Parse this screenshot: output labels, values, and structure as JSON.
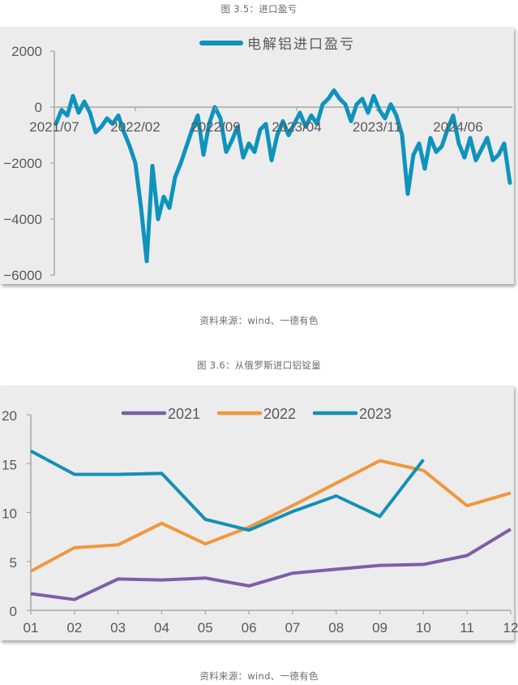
{
  "figure1": {
    "caption": "图 3.5：进口盈亏",
    "source": "资料来源：wind、一德有色"
  },
  "figure2": {
    "caption": "图 3.6：从俄罗斯进口铝锭量",
    "source": "资料来源：wind、一德有色"
  },
  "colors": {
    "series_import": "#0e93bd",
    "y2021": "#7f5ea8",
    "y2022": "#f0973e",
    "y2023": "#1390b4",
    "panel_bg": "#ececec",
    "axis": "#a6a6a6",
    "text": "#595959"
  },
  "chart_data": [
    {
      "type": "line",
      "title": "",
      "legend": [
        "电解铝进口盈亏"
      ],
      "legend_position": "top",
      "xlabel": "",
      "ylabel": "",
      "ylim": [
        -6000,
        2000
      ],
      "yticks": [
        "2000",
        "0",
        "-2000",
        "-4000",
        "-6000"
      ],
      "xticks": [
        "2021/07",
        "2022/02",
        "2022/09",
        "2023/04",
        "2023/11",
        "2024/06"
      ],
      "grid": false,
      "series": [
        {
          "name": "电解铝进口盈亏",
          "x_index_range": [
            0,
            40
          ],
          "values": [
            -600,
            -100,
            -300,
            400,
            -200,
            200,
            -200,
            -900,
            -700,
            -400,
            -600,
            -300,
            -900,
            -1400,
            -2000,
            -3600,
            -5500,
            -2100,
            -4000,
            -3200,
            -3600,
            -2500,
            -2000,
            -1400,
            -800,
            -300,
            -1700,
            -600,
            0,
            -400,
            -1600,
            -1200,
            -700,
            -1800,
            -1300,
            -1600,
            -800,
            -600,
            -1900,
            -1000,
            -500,
            -1000,
            -600,
            -200,
            -700,
            -300,
            -600,
            100,
            300,
            600,
            300,
            100,
            -500,
            100,
            300,
            -200,
            400,
            -100,
            -400,
            100,
            -300,
            -1000,
            -3100,
            -1700,
            -1300,
            -2200,
            -1100,
            -1600,
            -1400,
            -800,
            -300,
            -1300,
            -1800,
            -1100,
            -1900,
            -1500,
            -1100,
            -1900,
            -1700,
            -1300,
            -2700
          ]
        }
      ]
    },
    {
      "type": "line",
      "title": "",
      "legend": [
        "2021",
        "2022",
        "2023"
      ],
      "legend_position": "top",
      "xlabel": "",
      "ylabel": "",
      "ylim": [
        0,
        20
      ],
      "yticks": [
        "20",
        "15",
        "10",
        "5",
        "0"
      ],
      "grid": false,
      "categories": [
        "01",
        "02",
        "03",
        "04",
        "05",
        "06",
        "07",
        "08",
        "09",
        "10",
        "11",
        "12"
      ],
      "series": [
        {
          "name": "2021",
          "values": [
            1.7,
            1.1,
            3.2,
            3.1,
            3.3,
            2.5,
            3.8,
            4.2,
            4.6,
            4.7,
            5.6,
            8.3
          ]
        },
        {
          "name": "2022",
          "values": [
            4.0,
            6.4,
            6.7,
            8.9,
            6.8,
            8.5,
            10.7,
            13.0,
            15.3,
            14.3,
            10.7,
            12.0
          ]
        },
        {
          "name": "2023",
          "values": [
            16.3,
            13.9,
            13.9,
            14.0,
            9.3,
            8.2,
            10.1,
            11.7,
            9.6,
            15.4
          ]
        }
      ]
    }
  ]
}
